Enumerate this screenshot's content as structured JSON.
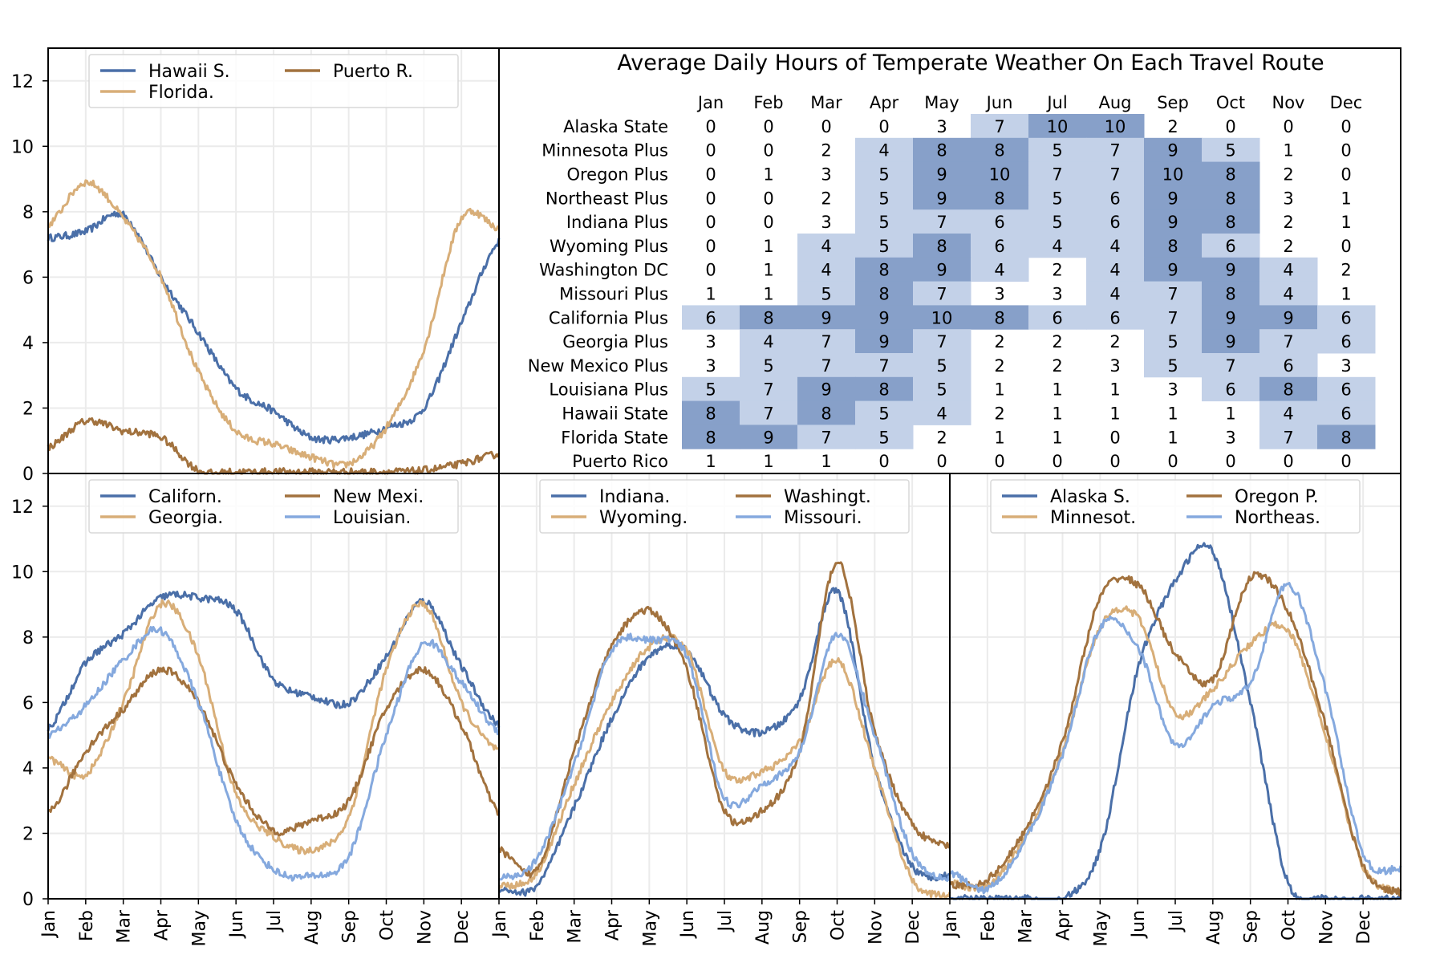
{
  "title": "Average Daily Hours of Temperate Weather On Each Travel Route",
  "months": [
    "Jan",
    "Feb",
    "Mar",
    "Apr",
    "May",
    "Jun",
    "Jul",
    "Aug",
    "Sep",
    "Oct",
    "Nov",
    "Dec"
  ],
  "y_ticks": [
    "0",
    "2",
    "4",
    "6",
    "8",
    "10",
    "12"
  ],
  "colors": {
    "series1": "#4a6fa8",
    "series2": "#d8ae78",
    "series3": "#a2723e",
    "series4": "#85a9de",
    "heat_low": "#c3d1e8",
    "heat_high": "#87a0c9",
    "grid": "#ebebeb"
  },
  "chart_data": [
    {
      "type": "table",
      "title": "Average Daily Hours of Temperate Weather On Each Travel Route",
      "columns": [
        "Jan",
        "Feb",
        "Mar",
        "Apr",
        "May",
        "Jun",
        "Jul",
        "Aug",
        "Sep",
        "Oct",
        "Nov",
        "Dec"
      ],
      "rows": [
        {
          "name": "Alaska State",
          "values": [
            0,
            0,
            0,
            0,
            3,
            7,
            10,
            10,
            2,
            0,
            0,
            0
          ]
        },
        {
          "name": "Minnesota Plus",
          "values": [
            0,
            0,
            2,
            4,
            8,
            8,
            5,
            7,
            9,
            5,
            1,
            0
          ]
        },
        {
          "name": "Oregon Plus",
          "values": [
            0,
            1,
            3,
            5,
            9,
            10,
            7,
            7,
            10,
            8,
            2,
            0
          ]
        },
        {
          "name": "Northeast Plus",
          "values": [
            0,
            0,
            2,
            5,
            9,
            8,
            5,
            6,
            9,
            8,
            3,
            1
          ]
        },
        {
          "name": "Indiana Plus",
          "values": [
            0,
            0,
            3,
            5,
            7,
            6,
            5,
            6,
            9,
            8,
            2,
            1
          ]
        },
        {
          "name": "Wyoming Plus",
          "values": [
            0,
            1,
            4,
            5,
            8,
            6,
            4,
            4,
            8,
            6,
            2,
            0
          ]
        },
        {
          "name": "Washington DC",
          "values": [
            0,
            1,
            4,
            8,
            9,
            4,
            2,
            4,
            9,
            9,
            4,
            2
          ]
        },
        {
          "name": "Missouri Plus",
          "values": [
            1,
            1,
            5,
            8,
            7,
            3,
            3,
            4,
            7,
            8,
            4,
            1
          ]
        },
        {
          "name": "California Plus",
          "values": [
            6,
            8,
            9,
            9,
            10,
            8,
            6,
            6,
            7,
            9,
            9,
            6
          ]
        },
        {
          "name": "Georgia Plus",
          "values": [
            3,
            4,
            7,
            9,
            7,
            2,
            2,
            2,
            5,
            9,
            7,
            6
          ]
        },
        {
          "name": "New Mexico Plus",
          "values": [
            3,
            5,
            7,
            7,
            5,
            2,
            2,
            3,
            5,
            7,
            6,
            3
          ]
        },
        {
          "name": "Louisiana Plus",
          "values": [
            5,
            7,
            9,
            8,
            5,
            1,
            1,
            1,
            3,
            6,
            8,
            6
          ]
        },
        {
          "name": "Hawaii State",
          "values": [
            8,
            7,
            8,
            5,
            4,
            2,
            1,
            1,
            1,
            1,
            4,
            6
          ]
        },
        {
          "name": "Florida State",
          "values": [
            8,
            9,
            7,
            5,
            2,
            1,
            1,
            0,
            1,
            3,
            7,
            8
          ]
        },
        {
          "name": "Puerto Rico",
          "values": [
            1,
            1,
            1,
            0,
            0,
            0,
            0,
            0,
            0,
            0,
            0,
            0
          ]
        }
      ]
    },
    {
      "type": "line",
      "x": [
        "Jan",
        "Feb",
        "Mar",
        "Apr",
        "May",
        "Jun",
        "Jul",
        "Aug",
        "Sep",
        "Oct",
        "Nov",
        "Dec",
        "Jan"
      ],
      "ylim": [
        0,
        13
      ],
      "legend": "top",
      "series": [
        {
          "name": "Hawaii S.",
          "values": [
            7.2,
            7.4,
            7.9,
            6.0,
            4.3,
            2.6,
            1.9,
            1.1,
            1.1,
            1.4,
            2.0,
            4.6,
            7.1
          ]
        },
        {
          "name": "Florida.",
          "values": [
            7.6,
            8.9,
            7.8,
            6.0,
            3.1,
            1.3,
            0.9,
            0.5,
            0.3,
            1.4,
            3.8,
            7.8,
            7.5
          ]
        },
        {
          "name": "Puerto R.",
          "values": [
            0.8,
            1.6,
            1.3,
            1.1,
            0.1,
            0.05,
            0.05,
            0.05,
            0.05,
            0.05,
            0.1,
            0.3,
            0.6
          ]
        }
      ]
    },
    {
      "type": "line",
      "x": [
        "Jan",
        "Feb",
        "Mar",
        "Apr",
        "May",
        "Jun",
        "Jul",
        "Aug",
        "Sep",
        "Oct",
        "Nov",
        "Dec",
        "Jan"
      ],
      "ylim": [
        0,
        13
      ],
      "legend": "top",
      "series": [
        {
          "name": "Californ.",
          "values": [
            5.2,
            7.2,
            8.1,
            9.2,
            9.2,
            8.8,
            6.7,
            6.2,
            6.0,
            7.4,
            9.1,
            7.1,
            5.3
          ]
        },
        {
          "name": "Georgia.",
          "values": [
            4.3,
            3.8,
            6.0,
            9.0,
            7.4,
            3.2,
            1.9,
            1.5,
            2.5,
            7.0,
            9.0,
            6.0,
            4.5
          ]
        },
        {
          "name": "New Mexi.",
          "values": [
            2.6,
            4.5,
            5.8,
            7.0,
            6.0,
            3.5,
            2.1,
            2.4,
            3.0,
            5.8,
            7.0,
            5.3,
            2.6
          ]
        },
        {
          "name": "Louisian.",
          "values": [
            5.0,
            5.9,
            7.3,
            8.2,
            6.0,
            2.4,
            0.9,
            0.7,
            1.3,
            5.0,
            7.8,
            6.6,
            5.1
          ]
        }
      ]
    },
    {
      "type": "line",
      "x": [
        "Jan",
        "Feb",
        "Mar",
        "Apr",
        "May",
        "Jun",
        "Jul",
        "Aug",
        "Sep",
        "Oct",
        "Nov",
        "Dec",
        "Jan"
      ],
      "ylim": [
        0,
        13
      ],
      "legend": "top",
      "series": [
        {
          "name": "Indiana.",
          "values": [
            0.3,
            0.4,
            2.8,
            5.5,
            7.4,
            7.6,
            5.6,
            5.1,
            6.1,
            9.4,
            4.0,
            1.0,
            0.7
          ]
        },
        {
          "name": "Wyoming.",
          "values": [
            0.4,
            0.8,
            3.5,
            6.0,
            7.7,
            7.6,
            3.9,
            3.9,
            4.8,
            7.3,
            4.0,
            0.6,
            0.1
          ]
        },
        {
          "name": "Washingt.",
          "values": [
            1.5,
            0.9,
            4.5,
            7.7,
            8.8,
            7.0,
            2.7,
            2.7,
            4.5,
            10.3,
            5.1,
            2.3,
            1.6
          ]
        },
        {
          "name": "Missouri.",
          "values": [
            0.6,
            1.2,
            4.1,
            7.6,
            7.9,
            7.4,
            3.1,
            3.5,
            4.5,
            8.1,
            5.0,
            1.4,
            0.6
          ]
        }
      ]
    },
    {
      "type": "line",
      "x": [
        "Jan",
        "Feb",
        "Mar",
        "Apr",
        "May",
        "Jun",
        "Jul",
        "Aug",
        "Sep",
        "Oct",
        "Nov",
        "Dec",
        "Jan"
      ],
      "ylim": [
        0,
        13
      ],
      "legend": "top",
      "series": [
        {
          "name": "Alaska S.",
          "values": [
            0.0,
            0.0,
            0.0,
            0.0,
            1.5,
            7.0,
            9.7,
            10.6,
            6.0,
            0.5,
            0.0,
            0.0,
            0.0
          ]
        },
        {
          "name": "Minnesot.",
          "values": [
            0.5,
            0.4,
            1.9,
            4.5,
            8.3,
            8.6,
            5.7,
            6.4,
            7.8,
            8.2,
            5.0,
            1.0,
            0.2
          ]
        },
        {
          "name": "Oregon P.",
          "values": [
            0.4,
            0.6,
            2.1,
            4.8,
            9.2,
            9.6,
            7.5,
            6.7,
            9.8,
            8.8,
            5.3,
            1.0,
            0.2
          ]
        },
        {
          "name": "Northeas.",
          "values": [
            0.8,
            0.3,
            1.8,
            4.4,
            8.3,
            7.7,
            4.7,
            5.9,
            6.6,
            9.6,
            6.4,
            1.4,
            0.9
          ]
        }
      ]
    }
  ]
}
